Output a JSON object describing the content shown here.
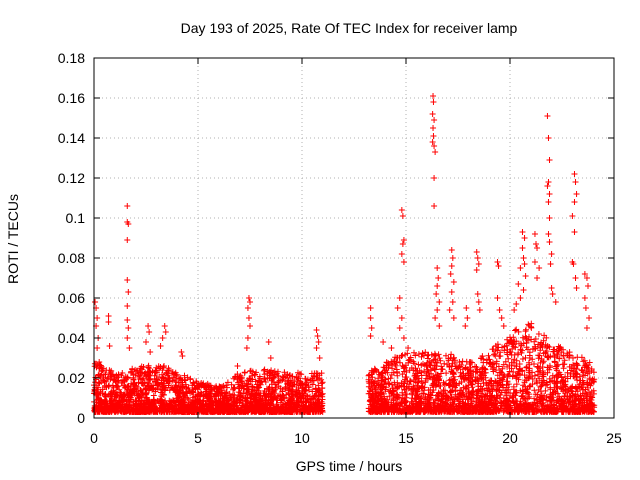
{
  "chart_data": {
    "type": "scatter",
    "title": "Day 193 of 2025, Rate Of TEC Index for receiver lamp",
    "xlabel": "GPS time / hours",
    "ylabel": "ROTI / TECUs",
    "xlim": [
      0,
      25
    ],
    "ylim": [
      0,
      0.18
    ],
    "x_ticks": [
      0,
      5,
      10,
      15,
      20,
      25
    ],
    "y_ticks": [
      0,
      0.02,
      0.04,
      0.06,
      0.08,
      0.1,
      0.12,
      0.14,
      0.16,
      0.18
    ],
    "grid": true,
    "marker": "+",
    "series_color": "#ff0000",
    "data_gap_hours": [
      11.0,
      13.2
    ],
    "density_profile": {
      "x": [
        0,
        1,
        2,
        3,
        4,
        5,
        6,
        7,
        8,
        9,
        10,
        11,
        13.2,
        14,
        15,
        16,
        17,
        18,
        19,
        20,
        21,
        22,
        23,
        24
      ],
      "typical_max": [
        0.025,
        0.02,
        0.022,
        0.025,
        0.02,
        0.015,
        0.013,
        0.02,
        0.022,
        0.02,
        0.02,
        0.02,
        0.02,
        0.025,
        0.03,
        0.03,
        0.03,
        0.025,
        0.03,
        0.04,
        0.045,
        0.035,
        0.03,
        0.025
      ]
    },
    "outliers": [
      {
        "x": 0.05,
        "y": 0.058
      },
      {
        "x": 0.1,
        "y": 0.055
      },
      {
        "x": 0.15,
        "y": 0.05
      },
      {
        "x": 0.1,
        "y": 0.046
      },
      {
        "x": 0.2,
        "y": 0.04
      },
      {
        "x": 0.15,
        "y": 0.035
      },
      {
        "x": 0.25,
        "y": 0.028
      },
      {
        "x": 0.7,
        "y": 0.051
      },
      {
        "x": 0.7,
        "y": 0.048
      },
      {
        "x": 0.75,
        "y": 0.036
      },
      {
        "x": 1.6,
        "y": 0.106
      },
      {
        "x": 1.6,
        "y": 0.098
      },
      {
        "x": 1.65,
        "y": 0.097
      },
      {
        "x": 1.6,
        "y": 0.089
      },
      {
        "x": 1.6,
        "y": 0.069
      },
      {
        "x": 1.65,
        "y": 0.063
      },
      {
        "x": 1.6,
        "y": 0.056
      },
      {
        "x": 1.6,
        "y": 0.049
      },
      {
        "x": 1.65,
        "y": 0.045
      },
      {
        "x": 1.6,
        "y": 0.04
      },
      {
        "x": 1.7,
        "y": 0.035
      },
      {
        "x": 2.6,
        "y": 0.046
      },
      {
        "x": 2.65,
        "y": 0.043
      },
      {
        "x": 2.5,
        "y": 0.038
      },
      {
        "x": 2.7,
        "y": 0.033
      },
      {
        "x": 3.4,
        "y": 0.046
      },
      {
        "x": 3.45,
        "y": 0.043
      },
      {
        "x": 3.3,
        "y": 0.04
      },
      {
        "x": 3.2,
        "y": 0.036
      },
      {
        "x": 4.2,
        "y": 0.033
      },
      {
        "x": 4.25,
        "y": 0.031
      },
      {
        "x": 7.45,
        "y": 0.06
      },
      {
        "x": 7.5,
        "y": 0.058
      },
      {
        "x": 7.4,
        "y": 0.055
      },
      {
        "x": 7.45,
        "y": 0.05
      },
      {
        "x": 7.5,
        "y": 0.046
      },
      {
        "x": 7.4,
        "y": 0.04
      },
      {
        "x": 7.35,
        "y": 0.035
      },
      {
        "x": 6.9,
        "y": 0.026
      },
      {
        "x": 8.4,
        "y": 0.038
      },
      {
        "x": 8.5,
        "y": 0.03
      },
      {
        "x": 10.7,
        "y": 0.044
      },
      {
        "x": 10.75,
        "y": 0.041
      },
      {
        "x": 10.8,
        "y": 0.038
      },
      {
        "x": 10.7,
        "y": 0.035
      },
      {
        "x": 10.85,
        "y": 0.03
      },
      {
        "x": 13.3,
        "y": 0.055
      },
      {
        "x": 13.3,
        "y": 0.05
      },
      {
        "x": 13.35,
        "y": 0.045
      },
      {
        "x": 13.3,
        "y": 0.041
      },
      {
        "x": 13.9,
        "y": 0.038
      },
      {
        "x": 14.3,
        "y": 0.035
      },
      {
        "x": 14.8,
        "y": 0.104
      },
      {
        "x": 14.85,
        "y": 0.101
      },
      {
        "x": 14.9,
        "y": 0.089
      },
      {
        "x": 14.85,
        "y": 0.087
      },
      {
        "x": 14.8,
        "y": 0.082
      },
      {
        "x": 14.9,
        "y": 0.078
      },
      {
        "x": 14.7,
        "y": 0.06
      },
      {
        "x": 14.6,
        "y": 0.055
      },
      {
        "x": 14.8,
        "y": 0.05
      },
      {
        "x": 14.7,
        "y": 0.045
      },
      {
        "x": 14.9,
        "y": 0.04
      },
      {
        "x": 15.1,
        "y": 0.035
      },
      {
        "x": 16.3,
        "y": 0.161
      },
      {
        "x": 16.32,
        "y": 0.158
      },
      {
        "x": 16.28,
        "y": 0.152
      },
      {
        "x": 16.35,
        "y": 0.149
      },
      {
        "x": 16.3,
        "y": 0.145
      },
      {
        "x": 16.32,
        "y": 0.141
      },
      {
        "x": 16.28,
        "y": 0.138
      },
      {
        "x": 16.35,
        "y": 0.136
      },
      {
        "x": 16.4,
        "y": 0.133
      },
      {
        "x": 16.35,
        "y": 0.12
      },
      {
        "x": 16.35,
        "y": 0.106
      },
      {
        "x": 16.5,
        "y": 0.075
      },
      {
        "x": 16.55,
        "y": 0.07
      },
      {
        "x": 16.5,
        "y": 0.066
      },
      {
        "x": 16.45,
        "y": 0.062
      },
      {
        "x": 16.6,
        "y": 0.058
      },
      {
        "x": 16.5,
        "y": 0.054
      },
      {
        "x": 16.4,
        "y": 0.05
      },
      {
        "x": 16.6,
        "y": 0.046
      },
      {
        "x": 17.2,
        "y": 0.084
      },
      {
        "x": 17.25,
        "y": 0.08
      },
      {
        "x": 17.2,
        "y": 0.076
      },
      {
        "x": 17.15,
        "y": 0.072
      },
      {
        "x": 17.3,
        "y": 0.068
      },
      {
        "x": 17.2,
        "y": 0.063
      },
      {
        "x": 17.25,
        "y": 0.058
      },
      {
        "x": 17.1,
        "y": 0.054
      },
      {
        "x": 17.3,
        "y": 0.05
      },
      {
        "x": 17.9,
        "y": 0.055
      },
      {
        "x": 17.95,
        "y": 0.05
      },
      {
        "x": 17.85,
        "y": 0.046
      },
      {
        "x": 18.4,
        "y": 0.083
      },
      {
        "x": 18.45,
        "y": 0.08
      },
      {
        "x": 18.5,
        "y": 0.077
      },
      {
        "x": 18.4,
        "y": 0.074
      },
      {
        "x": 18.45,
        "y": 0.062
      },
      {
        "x": 18.5,
        "y": 0.058
      },
      {
        "x": 18.55,
        "y": 0.054
      },
      {
        "x": 19.4,
        "y": 0.078
      },
      {
        "x": 19.45,
        "y": 0.076
      },
      {
        "x": 19.4,
        "y": 0.06
      },
      {
        "x": 19.5,
        "y": 0.054
      },
      {
        "x": 19.6,
        "y": 0.05
      },
      {
        "x": 19.7,
        "y": 0.046
      },
      {
        "x": 20.6,
        "y": 0.093
      },
      {
        "x": 20.7,
        "y": 0.09
      },
      {
        "x": 20.6,
        "y": 0.085
      },
      {
        "x": 20.65,
        "y": 0.08
      },
      {
        "x": 20.7,
        "y": 0.077
      },
      {
        "x": 20.5,
        "y": 0.075
      },
      {
        "x": 20.75,
        "y": 0.071
      },
      {
        "x": 20.4,
        "y": 0.067
      },
      {
        "x": 20.65,
        "y": 0.064
      },
      {
        "x": 20.5,
        "y": 0.06
      },
      {
        "x": 20.3,
        "y": 0.057
      },
      {
        "x": 20.2,
        "y": 0.054
      },
      {
        "x": 21.2,
        "y": 0.092
      },
      {
        "x": 21.25,
        "y": 0.087
      },
      {
        "x": 21.3,
        "y": 0.085
      },
      {
        "x": 21.2,
        "y": 0.078
      },
      {
        "x": 21.4,
        "y": 0.075
      },
      {
        "x": 21.3,
        "y": 0.07
      },
      {
        "x": 21.8,
        "y": 0.151
      },
      {
        "x": 21.85,
        "y": 0.14
      },
      {
        "x": 21.9,
        "y": 0.129
      },
      {
        "x": 21.85,
        "y": 0.118
      },
      {
        "x": 21.8,
        "y": 0.116
      },
      {
        "x": 21.9,
        "y": 0.112
      },
      {
        "x": 21.85,
        "y": 0.108
      },
      {
        "x": 21.9,
        "y": 0.1
      },
      {
        "x": 21.85,
        "y": 0.092
      },
      {
        "x": 21.9,
        "y": 0.088
      },
      {
        "x": 22.0,
        "y": 0.082
      },
      {
        "x": 21.95,
        "y": 0.077
      },
      {
        "x": 22.0,
        "y": 0.065
      },
      {
        "x": 22.05,
        "y": 0.062
      },
      {
        "x": 22.2,
        "y": 0.058
      },
      {
        "x": 23.1,
        "y": 0.122
      },
      {
        "x": 23.15,
        "y": 0.118
      },
      {
        "x": 23.2,
        "y": 0.112
      },
      {
        "x": 23.1,
        "y": 0.108
      },
      {
        "x": 23.0,
        "y": 0.101
      },
      {
        "x": 23.1,
        "y": 0.093
      },
      {
        "x": 23.0,
        "y": 0.078
      },
      {
        "x": 23.05,
        "y": 0.077
      },
      {
        "x": 23.15,
        "y": 0.07
      },
      {
        "x": 23.2,
        "y": 0.065
      },
      {
        "x": 23.6,
        "y": 0.072
      },
      {
        "x": 23.7,
        "y": 0.07
      },
      {
        "x": 23.75,
        "y": 0.066
      },
      {
        "x": 23.6,
        "y": 0.06
      },
      {
        "x": 23.65,
        "y": 0.055
      },
      {
        "x": 23.8,
        "y": 0.05
      },
      {
        "x": 23.7,
        "y": 0.045
      }
    ]
  }
}
